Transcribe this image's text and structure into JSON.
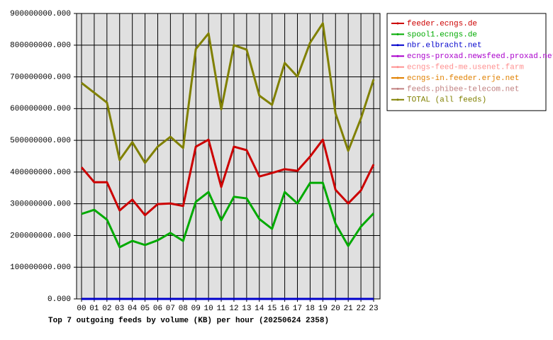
{
  "chart_data": {
    "type": "line",
    "title": "Top 7 outgoing feeds by volume (KB) per hour (20250624 2358)",
    "categories": [
      "00",
      "01",
      "02",
      "03",
      "04",
      "05",
      "06",
      "07",
      "08",
      "09",
      "10",
      "11",
      "12",
      "13",
      "14",
      "15",
      "16",
      "17",
      "18",
      "19",
      "20",
      "21",
      "22",
      "23"
    ],
    "ylim": [
      0,
      900000000
    ],
    "yticks": [
      {
        "value": 0,
        "label": "0.000"
      },
      {
        "value": 100000000,
        "label": "100000000.000"
      },
      {
        "value": 200000000,
        "label": "200000000.000"
      },
      {
        "value": 300000000,
        "label": "300000000.000"
      },
      {
        "value": 400000000,
        "label": "400000000.000"
      },
      {
        "value": 500000000,
        "label": "500000000.000"
      },
      {
        "value": 600000000,
        "label": "600000000.000"
      },
      {
        "value": 700000000,
        "label": "700000000.000"
      },
      {
        "value": 800000000,
        "label": "800000000.000"
      },
      {
        "value": 900000000,
        "label": "900000000.000"
      }
    ],
    "grid": true,
    "legend": "outside-right",
    "series": [
      {
        "name": "feeder.ecngs.de",
        "color": "#cc0000",
        "values": [
          415000000,
          368000000,
          368000000,
          279000000,
          313000000,
          264000000,
          299000000,
          301000000,
          293000000,
          480000000,
          502000000,
          353000000,
          480000000,
          469000000,
          386000000,
          397000000,
          409000000,
          404000000,
          449000000,
          502000000,
          344000000,
          301000000,
          342000000,
          424000000
        ]
      },
      {
        "name": "spool1.ecngs.de",
        "color": "#00aa00",
        "values": [
          268000000,
          281000000,
          250000000,
          163000000,
          183000000,
          170000000,
          185000000,
          208000000,
          183000000,
          306000000,
          337000000,
          248000000,
          322000000,
          317000000,
          252000000,
          221000000,
          337000000,
          301000000,
          366000000,
          366000000,
          237000000,
          167000000,
          228000000,
          270000000
        ]
      },
      {
        "name": "nbr.elbracht.net",
        "color": "#0000cc",
        "values": [
          0,
          0,
          0,
          0,
          0,
          0,
          0,
          0,
          0,
          0,
          0,
          0,
          0,
          0,
          0,
          0,
          0,
          0,
          0,
          0,
          0,
          0,
          0,
          0
        ]
      },
      {
        "name": "ecngs-proxad.newsfeed.proxad.net",
        "color": "#aa00cc",
        "values": [
          0,
          0,
          0,
          0,
          0,
          0,
          0,
          0,
          0,
          0,
          0,
          0,
          0,
          0,
          0,
          0,
          0,
          0,
          0,
          0,
          0,
          0,
          0,
          0
        ]
      },
      {
        "name": "ecngs-feed-me.usenet.farm",
        "color": "#ff9090",
        "values": [
          0,
          0,
          0,
          0,
          0,
          0,
          0,
          0,
          0,
          0,
          0,
          0,
          0,
          0,
          0,
          0,
          0,
          0,
          0,
          0,
          0,
          0,
          0,
          0
        ]
      },
      {
        "name": "ecngs-in.feeder.erje.net",
        "color": "#e08000",
        "values": [
          0,
          0,
          0,
          0,
          0,
          0,
          0,
          0,
          0,
          0,
          0,
          0,
          0,
          0,
          0,
          0,
          0,
          0,
          0,
          0,
          0,
          0,
          0,
          0
        ]
      },
      {
        "name": "feeds.phibee-telecom.net",
        "color": "#c08080",
        "values": [
          0,
          0,
          0,
          0,
          0,
          0,
          0,
          0,
          0,
          0,
          0,
          0,
          0,
          0,
          0,
          0,
          0,
          0,
          0,
          0,
          0,
          0,
          0,
          0
        ]
      },
      {
        "name": "TOTAL (all feeds)",
        "color": "#808000",
        "values": [
          681000000,
          650000000,
          619000000,
          438000000,
          494000000,
          429000000,
          480000000,
          511000000,
          476000000,
          788000000,
          837000000,
          598000000,
          800000000,
          786000000,
          641000000,
          612000000,
          744000000,
          701000000,
          808000000,
          869000000,
          585000000,
          467000000,
          569000000,
          692000000
        ]
      }
    ]
  }
}
